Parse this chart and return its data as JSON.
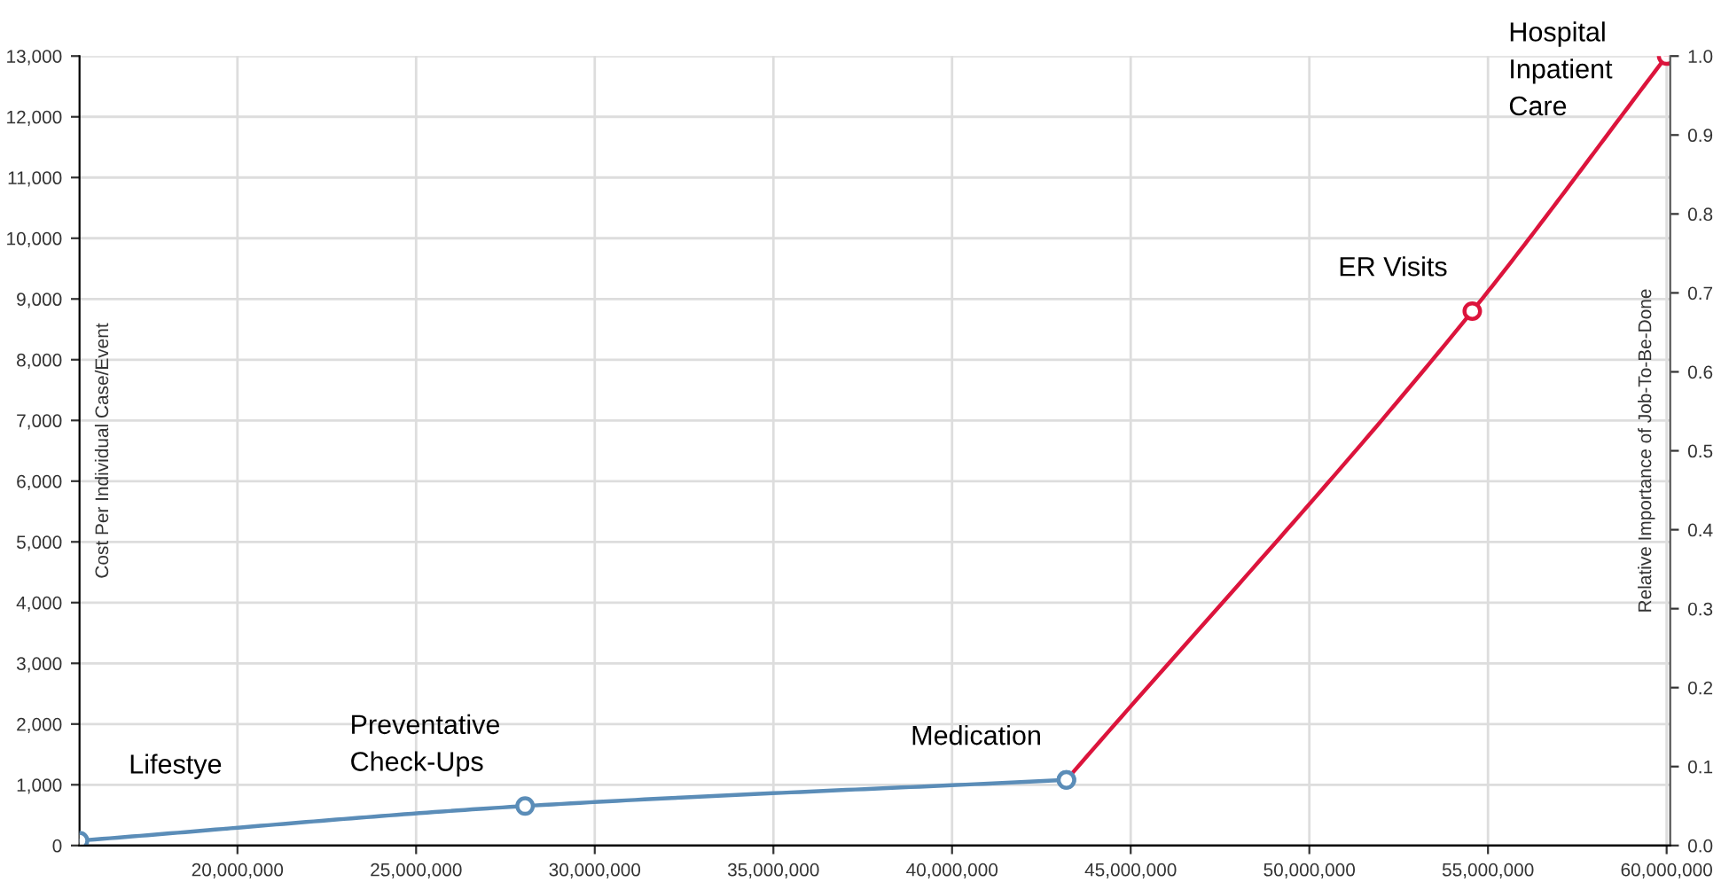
{
  "chart_data": {
    "type": "line",
    "xlabel": null,
    "ylabel": "Cost Per Individual Case/Event",
    "y2label": "Relative Importance of Job-To-Be-Done",
    "series": [
      {
        "color": "#5b8db8",
        "x": [
          15580000,
          28050000,
          43200000
        ],
        "values": [
          80,
          650,
          1080
        ],
        "colors": [
          "#5b8db8",
          "#5b8db8",
          "#5b8db8"
        ]
      },
      {
        "color": "#dc143c",
        "x": [
          43200000,
          54560000,
          60000000
        ],
        "values": [
          1080,
          8800,
          13000
        ],
        "colors": [
          "#5b8db8",
          "#dc143c",
          "#dc143c"
        ]
      }
    ],
    "annotations": [
      {
        "text": "Lifestye",
        "x": 15580000,
        "y": 80
      },
      {
        "text": "Preventative\nCheck-Ups",
        "x": 28050000,
        "y": 650
      },
      {
        "text": "Medication",
        "x": 43200000,
        "y": 1080
      },
      {
        "text": "ER Visits",
        "x": 54560000,
        "y": 8800
      },
      {
        "text": "Hospital\nInpatient\nCare",
        "x": 60000000,
        "y": 13000
      }
    ],
    "xlim": [
      15580000,
      60100000
    ],
    "xticks": [
      {
        "value": 20000000,
        "label": "20,000,000"
      },
      {
        "value": 25000000,
        "label": "25,000,000"
      },
      {
        "value": 30000000,
        "label": "30,000,000"
      },
      {
        "value": 35000000,
        "label": "35,000,000"
      },
      {
        "value": 40000000,
        "label": "40,000,000"
      },
      {
        "value": 45000000,
        "label": "45,000,000"
      },
      {
        "value": 50000000,
        "label": "50,000,000"
      },
      {
        "value": 55000000,
        "label": "55,000,000"
      },
      {
        "value": 60000000,
        "label": "60,000,000"
      }
    ],
    "ylim": [
      0,
      13000
    ],
    "yticks": [
      {
        "value": 0,
        "label": "0"
      },
      {
        "value": 1000,
        "label": "1,000"
      },
      {
        "value": 2000,
        "label": "2,000"
      },
      {
        "value": 3000,
        "label": "3,000"
      },
      {
        "value": 4000,
        "label": "4,000"
      },
      {
        "value": 5000,
        "label": "5,000"
      },
      {
        "value": 6000,
        "label": "6,000"
      },
      {
        "value": 7000,
        "label": "7,000"
      },
      {
        "value": 8000,
        "label": "8,000"
      },
      {
        "value": 9000,
        "label": "9,000"
      },
      {
        "value": 10000,
        "label": "10,000"
      },
      {
        "value": 11000,
        "label": "11,000"
      },
      {
        "value": 12000,
        "label": "12,000"
      },
      {
        "value": 13000,
        "label": "13,000"
      }
    ],
    "y2lim": [
      0,
      1.0
    ],
    "y2ticks": [
      {
        "value": 0,
        "label": "0.0"
      },
      0.1,
      0.2,
      0.3,
      0.4,
      0.5,
      0.6,
      0.7,
      0.8,
      0.9,
      {
        "value": 1.0,
        "label": "1.0"
      }
    ],
    "grid": true,
    "marker": "circle",
    "line_style": "solid"
  }
}
